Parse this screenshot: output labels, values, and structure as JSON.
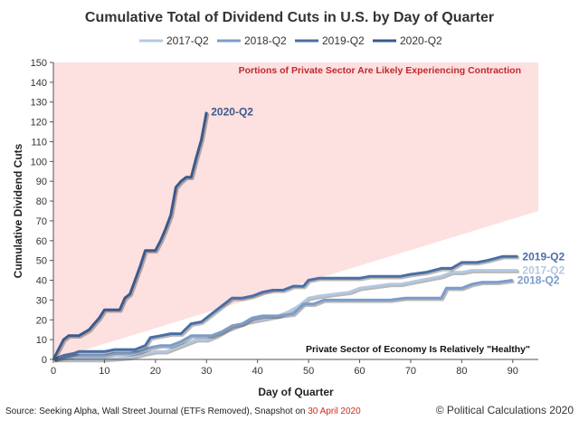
{
  "chart_data": {
    "type": "line",
    "title": "Cumulative Total of Dividend Cuts in U.S. by Day of Quarter",
    "xlabel": "Day of Quarter",
    "ylabel": "Cumulative Dividend Cuts",
    "xlim": [
      0,
      95
    ],
    "ylim": [
      0,
      150
    ],
    "xticks": [
      0,
      10,
      20,
      30,
      40,
      50,
      60,
      70,
      80,
      90
    ],
    "yticks": [
      0,
      10,
      20,
      30,
      40,
      50,
      60,
      70,
      80,
      90,
      100,
      110,
      120,
      130,
      140,
      150
    ],
    "grid": false,
    "legend_position": "top",
    "zone_top_label": "Portions of Private Sector Are Likely Experiencing Contraction",
    "zone_bottom_label": "Private Sector of Economy Is Relatively \"Healthy\"",
    "zone_color": "#fde0e0",
    "zone_boundary": [
      [
        0,
        0
      ],
      [
        95,
        75
      ]
    ],
    "series": [
      {
        "name": "2017-Q2",
        "color": "#b4c8e1",
        "end_label": "2017-Q2",
        "points": [
          [
            0,
            0
          ],
          [
            5,
            0
          ],
          [
            10,
            0
          ],
          [
            15,
            1
          ],
          [
            18,
            3
          ],
          [
            20,
            4
          ],
          [
            22,
            4
          ],
          [
            24,
            6
          ],
          [
            26,
            8
          ],
          [
            28,
            10
          ],
          [
            30,
            10
          ],
          [
            32,
            12
          ],
          [
            34,
            15
          ],
          [
            36,
            17
          ],
          [
            38,
            19
          ],
          [
            40,
            20
          ],
          [
            42,
            21
          ],
          [
            44,
            22
          ],
          [
            46,
            24
          ],
          [
            48,
            27
          ],
          [
            50,
            31
          ],
          [
            52,
            32
          ],
          [
            55,
            33
          ],
          [
            58,
            34
          ],
          [
            60,
            36
          ],
          [
            63,
            37
          ],
          [
            66,
            38
          ],
          [
            68,
            38
          ],
          [
            70,
            39
          ],
          [
            72,
            40
          ],
          [
            74,
            41
          ],
          [
            76,
            42
          ],
          [
            78,
            44
          ],
          [
            80,
            44
          ],
          [
            82,
            45
          ],
          [
            85,
            45
          ],
          [
            88,
            45
          ],
          [
            91,
            45
          ]
        ]
      },
      {
        "name": "2018-Q2",
        "color": "#7c9cc9",
        "end_label": "2018-Q2",
        "points": [
          [
            0,
            0
          ],
          [
            2,
            1
          ],
          [
            4,
            2
          ],
          [
            6,
            2
          ],
          [
            10,
            2
          ],
          [
            12,
            3
          ],
          [
            15,
            3
          ],
          [
            17,
            4
          ],
          [
            19,
            6
          ],
          [
            21,
            7
          ],
          [
            23,
            7
          ],
          [
            25,
            9
          ],
          [
            27,
            12
          ],
          [
            29,
            12
          ],
          [
            31,
            12
          ],
          [
            33,
            14
          ],
          [
            35,
            17
          ],
          [
            37,
            18
          ],
          [
            39,
            21
          ],
          [
            41,
            22
          ],
          [
            44,
            22
          ],
          [
            47,
            23
          ],
          [
            49,
            28
          ],
          [
            51,
            28
          ],
          [
            53,
            30
          ],
          [
            58,
            30
          ],
          [
            62,
            30
          ],
          [
            66,
            30
          ],
          [
            69,
            31
          ],
          [
            73,
            31
          ],
          [
            76,
            31
          ],
          [
            77,
            36
          ],
          [
            80,
            36
          ],
          [
            82,
            38
          ],
          [
            84,
            39
          ],
          [
            87,
            39
          ],
          [
            90,
            40
          ]
        ]
      },
      {
        "name": "2019-Q2",
        "color": "#4a6fa5",
        "end_label": "2019-Q2",
        "points": [
          [
            0,
            0
          ],
          [
            2,
            2
          ],
          [
            4,
            3
          ],
          [
            5,
            4
          ],
          [
            10,
            4
          ],
          [
            12,
            5
          ],
          [
            16,
            5
          ],
          [
            18,
            7
          ],
          [
            19,
            11
          ],
          [
            21,
            12
          ],
          [
            23,
            13
          ],
          [
            25,
            13
          ],
          [
            27,
            18
          ],
          [
            29,
            19
          ],
          [
            31,
            23
          ],
          [
            33,
            27
          ],
          [
            35,
            31
          ],
          [
            37,
            31
          ],
          [
            39,
            32
          ],
          [
            41,
            34
          ],
          [
            43,
            35
          ],
          [
            45,
            35
          ],
          [
            47,
            37
          ],
          [
            49,
            37
          ],
          [
            50,
            40
          ],
          [
            52,
            41
          ],
          [
            55,
            41
          ],
          [
            60,
            41
          ],
          [
            62,
            42
          ],
          [
            68,
            42
          ],
          [
            70,
            43
          ],
          [
            73,
            44
          ],
          [
            76,
            46
          ],
          [
            78,
            46
          ],
          [
            80,
            49
          ],
          [
            83,
            49
          ],
          [
            85,
            50
          ],
          [
            88,
            52
          ],
          [
            91,
            52
          ]
        ]
      },
      {
        "name": "2020-Q2",
        "color": "#3b5a8c",
        "end_label": "2020-Q2",
        "points": [
          [
            0,
            0
          ],
          [
            1,
            5
          ],
          [
            2,
            10
          ],
          [
            3,
            12
          ],
          [
            5,
            12
          ],
          [
            7,
            15
          ],
          [
            8,
            18
          ],
          [
            9,
            21
          ],
          [
            10,
            25
          ],
          [
            12,
            25
          ],
          [
            13,
            25
          ],
          [
            14,
            31
          ],
          [
            15,
            33
          ],
          [
            16,
            40
          ],
          [
            17,
            47
          ],
          [
            18,
            55
          ],
          [
            20,
            55
          ],
          [
            21,
            60
          ],
          [
            22,
            66
          ],
          [
            23,
            73
          ],
          [
            24,
            87
          ],
          [
            25,
            90
          ],
          [
            26,
            92
          ],
          [
            27,
            92
          ],
          [
            28,
            102
          ],
          [
            29,
            111
          ],
          [
            30,
            125
          ]
        ]
      }
    ]
  },
  "source_prefix": "Source: Seeking Alpha, Wall Street Journal (ETFs Removed), Snapshot on ",
  "source_date": "30 April 2020",
  "source_date_color": "#d9261c",
  "copyright": "© Political Calculations 2020"
}
